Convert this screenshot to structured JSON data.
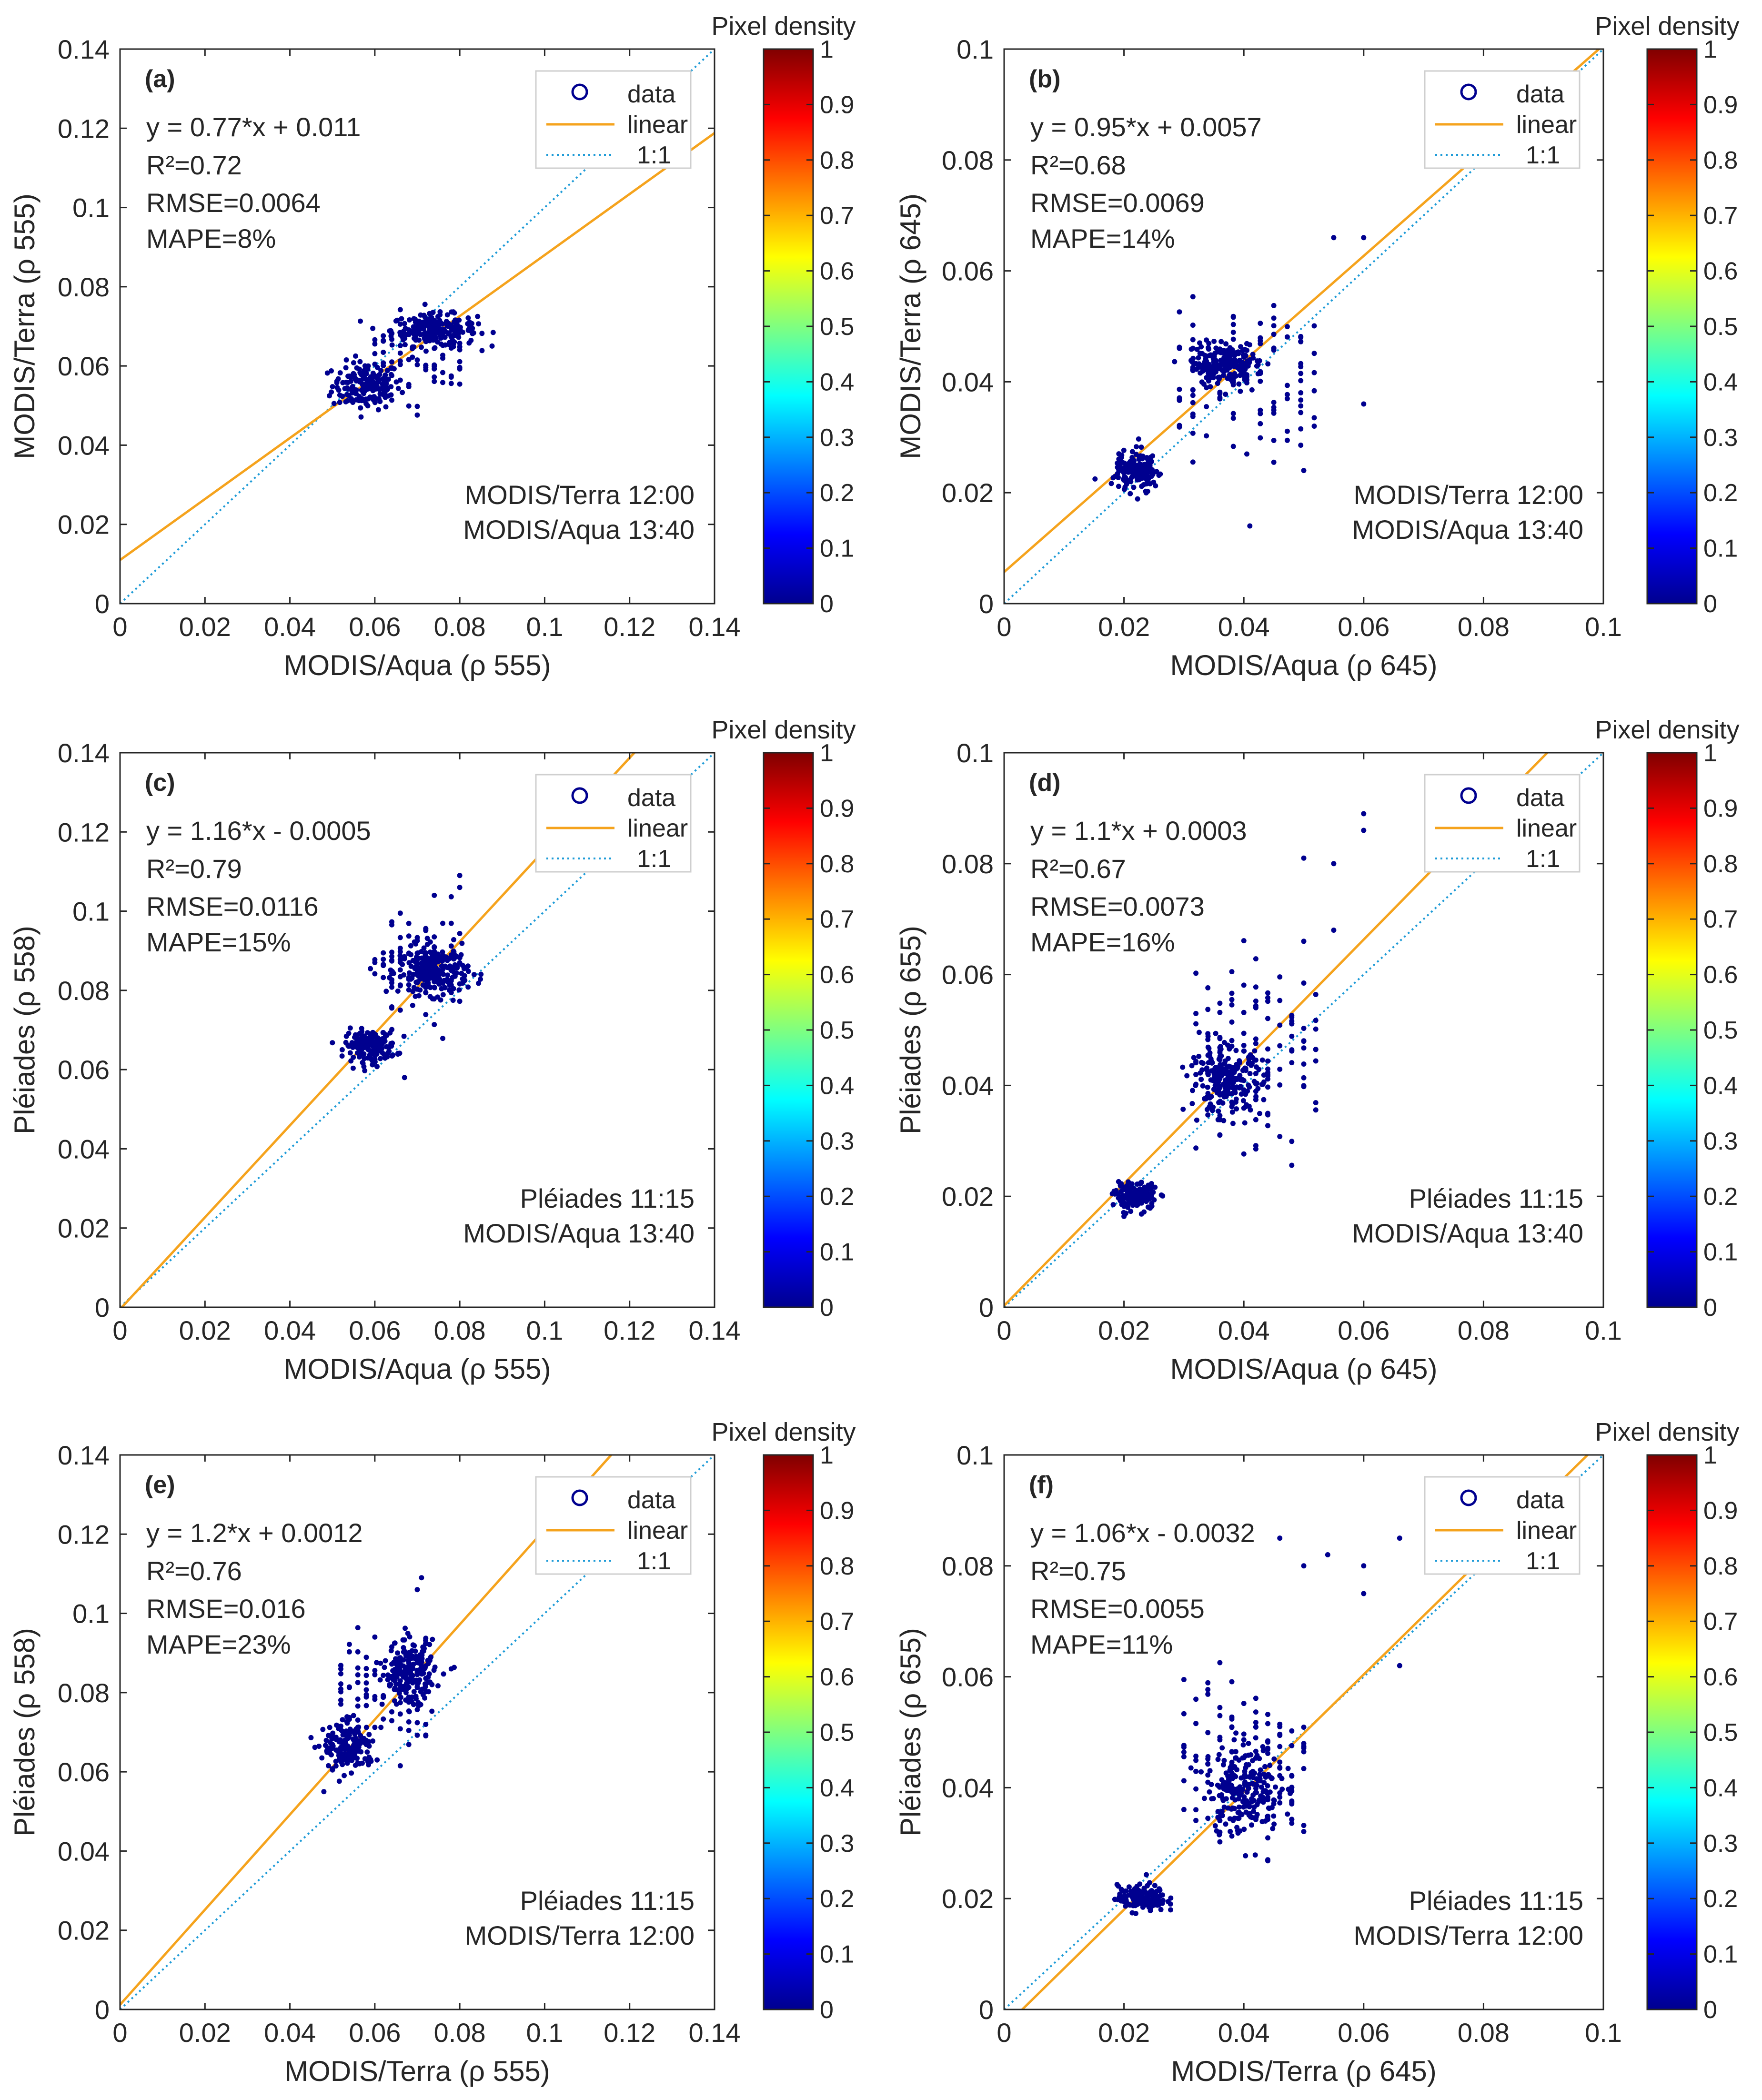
{
  "colors": {
    "data_marker": "#00008f",
    "linear_line": "#f5a31d",
    "one_to_one_line": "#1e9bd7",
    "axes": "#262626",
    "legend_border": "#cfcfcf"
  },
  "colorbar": {
    "title": "Pixel density",
    "ticks": [
      "0",
      "0.1",
      "0.2",
      "0.3",
      "0.4",
      "0.5",
      "0.6",
      "0.7",
      "0.8",
      "0.9",
      "1"
    ],
    "colormap": "jet"
  },
  "legend": {
    "items": [
      {
        "label": "data",
        "symbol": "circle"
      },
      {
        "label": "linear",
        "symbol": "solid-line"
      },
      {
        "label": "1:1",
        "symbol": "dotted-line"
      }
    ],
    "placement": "top-right"
  },
  "chart_data": [
    {
      "type": "scatter",
      "panel_label": "(a)",
      "xlabel": "MODIS/Aqua (ρ 555)",
      "ylabel": "MODIS/Terra (ρ 555)",
      "xlim": [
        0,
        0.14
      ],
      "ylim": [
        0,
        0.14
      ],
      "xticks": [
        "0",
        "0.02",
        "0.04",
        "0.06",
        "0.08",
        "0.1",
        "0.12",
        "0.14"
      ],
      "yticks": [
        "0",
        "0.02",
        "0.04",
        "0.06",
        "0.08",
        "0.1",
        "0.12",
        "0.14"
      ],
      "fit": {
        "slope": 0.77,
        "intercept": 0.011
      },
      "stats": [
        "y = 0.77*x + 0.011",
        "R²=0.72",
        "RMSE=0.0064",
        "MAPE=8%"
      ],
      "note": [
        "MODIS/Terra 12:00",
        "MODIS/Aqua 13:40"
      ],
      "clusters": [
        {
          "cx": 0.058,
          "cy": 0.055,
          "sx": 0.004,
          "sy": 0.003,
          "n": 170,
          "tight": true
        },
        {
          "cx": 0.074,
          "cy": 0.069,
          "sx": 0.005,
          "sy": 0.002,
          "n": 230,
          "tight": true
        },
        {
          "cx": 0.07,
          "cy": 0.062,
          "sx": 0.008,
          "sy": 0.006,
          "n": 70,
          "tight": false
        }
      ],
      "points": []
    },
    {
      "type": "scatter",
      "panel_label": "(b)",
      "xlabel": "MODIS/Aqua (ρ 645)",
      "ylabel": "MODIS/Terra (ρ 645)",
      "xlim": [
        0,
        0.1
      ],
      "ylim": [
        0,
        0.1
      ],
      "xticks": [
        "0",
        "0.02",
        "0.04",
        "0.06",
        "0.08",
        "0.1"
      ],
      "yticks": [
        "0",
        "0.02",
        "0.04",
        "0.06",
        "0.08",
        "0.1"
      ],
      "fit": {
        "slope": 0.95,
        "intercept": 0.0057
      },
      "stats": [
        "y = 0.95*x + 0.0057",
        "R²=0.68",
        "RMSE=0.0069",
        "MAPE=14%"
      ],
      "note": [
        "MODIS/Terra 12:00",
        "MODIS/Aqua 13:40"
      ],
      "clusters": [
        {
          "cx": 0.022,
          "cy": 0.024,
          "sx": 0.0017,
          "sy": 0.0018,
          "n": 160,
          "tight": true
        },
        {
          "cx": 0.037,
          "cy": 0.043,
          "sx": 0.003,
          "sy": 0.0018,
          "n": 190,
          "tight": true
        },
        {
          "cx": 0.04,
          "cy": 0.04,
          "sx": 0.009,
          "sy": 0.009,
          "n": 110,
          "tight": false
        }
      ],
      "points": [
        [
          0.041,
          0.014
        ],
        [
          0.05,
          0.024
        ],
        [
          0.055,
          0.066
        ],
        [
          0.06,
          0.066
        ],
        [
          0.06,
          0.036
        ]
      ]
    },
    {
      "type": "scatter",
      "panel_label": "(c)",
      "xlabel": "MODIS/Aqua (ρ 555)",
      "ylabel": "Pléiades (ρ 558)",
      "xlim": [
        0,
        0.14
      ],
      "ylim": [
        0,
        0.14
      ],
      "xticks": [
        "0",
        "0.02",
        "0.04",
        "0.06",
        "0.08",
        "0.1",
        "0.12",
        "0.14"
      ],
      "yticks": [
        "0",
        "0.02",
        "0.04",
        "0.06",
        "0.08",
        "0.1",
        "0.12",
        "0.14"
      ],
      "fit": {
        "slope": 1.16,
        "intercept": -0.0005
      },
      "stats": [
        "y = 1.16*x - 0.0005",
        "R²=0.79",
        "RMSE=0.0116",
        "MAPE=15%"
      ],
      "note": [
        "Pléiades 11:15",
        "MODIS/Aqua 13:40"
      ],
      "clusters": [
        {
          "cx": 0.059,
          "cy": 0.066,
          "sx": 0.003,
          "sy": 0.002,
          "n": 170,
          "tight": true
        },
        {
          "cx": 0.074,
          "cy": 0.085,
          "sx": 0.004,
          "sy": 0.003,
          "n": 230,
          "tight": true
        },
        {
          "cx": 0.07,
          "cy": 0.085,
          "sx": 0.008,
          "sy": 0.008,
          "n": 90,
          "tight": false
        }
      ],
      "points": [
        [
          0.08,
          0.109
        ],
        [
          0.08,
          0.106
        ],
        [
          0.067,
          0.058
        ]
      ]
    },
    {
      "type": "scatter",
      "panel_label": "(d)",
      "xlabel": "MODIS/Aqua (ρ 645)",
      "ylabel": "Pléiades (ρ 655)",
      "xlim": [
        0,
        0.1
      ],
      "ylim": [
        0,
        0.1
      ],
      "xticks": [
        "0",
        "0.02",
        "0.04",
        "0.06",
        "0.08",
        "0.1"
      ],
      "yticks": [
        "0",
        "0.02",
        "0.04",
        "0.06",
        "0.08",
        "0.1"
      ],
      "fit": {
        "slope": 1.1,
        "intercept": 0.0003
      },
      "stats": [
        "y = 1.1*x + 0.0003",
        "R²=0.67",
        "RMSE=0.0073",
        "MAPE=16%"
      ],
      "note": [
        "Pléiades 11:15",
        "MODIS/Aqua 13:40"
      ],
      "clusters": [
        {
          "cx": 0.022,
          "cy": 0.02,
          "sx": 0.0017,
          "sy": 0.0012,
          "n": 150,
          "tight": true
        },
        {
          "cx": 0.037,
          "cy": 0.041,
          "sx": 0.003,
          "sy": 0.003,
          "n": 220,
          "tight": true
        },
        {
          "cx": 0.042,
          "cy": 0.046,
          "sx": 0.008,
          "sy": 0.01,
          "n": 120,
          "tight": false
        }
      ],
      "points": [
        [
          0.06,
          0.089
        ],
        [
          0.06,
          0.086
        ],
        [
          0.05,
          0.081
        ],
        [
          0.055,
          0.08
        ],
        [
          0.055,
          0.068
        ],
        [
          0.05,
          0.066
        ]
      ]
    },
    {
      "type": "scatter",
      "panel_label": "(e)",
      "xlabel": "MODIS/Terra (ρ 555)",
      "ylabel": "Pléiades (ρ 558)",
      "xlim": [
        0,
        0.14
      ],
      "ylim": [
        0,
        0.14
      ],
      "xticks": [
        "0",
        "0.02",
        "0.04",
        "0.06",
        "0.08",
        "0.1",
        "0.12",
        "0.14"
      ],
      "yticks": [
        "0",
        "0.02",
        "0.04",
        "0.06",
        "0.08",
        "0.1",
        "0.12",
        "0.14"
      ],
      "fit": {
        "slope": 1.2,
        "intercept": 0.0012
      },
      "stats": [
        "y = 1.2*x + 0.0012",
        "R²=0.76",
        "RMSE=0.016",
        "MAPE=23%"
      ],
      "note": [
        "Pléiades 11:15",
        "MODIS/Terra 12:00"
      ],
      "clusters": [
        {
          "cx": 0.054,
          "cy": 0.066,
          "sx": 0.003,
          "sy": 0.003,
          "n": 170,
          "tight": true
        },
        {
          "cx": 0.068,
          "cy": 0.085,
          "sx": 0.003,
          "sy": 0.004,
          "n": 200,
          "tight": true
        },
        {
          "cx": 0.062,
          "cy": 0.08,
          "sx": 0.008,
          "sy": 0.01,
          "n": 90,
          "tight": false
        }
      ],
      "points": [
        [
          0.071,
          0.109
        ],
        [
          0.07,
          0.106
        ],
        [
          0.048,
          0.055
        ],
        [
          0.078,
          0.086
        ]
      ]
    },
    {
      "type": "scatter",
      "panel_label": "(f)",
      "xlabel": "MODIS/Terra (ρ 645)",
      "ylabel": "Pléiades (ρ 655)",
      "xlim": [
        0,
        0.1
      ],
      "ylim": [
        0,
        0.1
      ],
      "xticks": [
        "0",
        "0.02",
        "0.04",
        "0.06",
        "0.08",
        "0.1"
      ],
      "yticks": [
        "0",
        "0.02",
        "0.04",
        "0.06",
        "0.08",
        "0.1"
      ],
      "fit": {
        "slope": 1.06,
        "intercept": -0.0032
      },
      "stats": [
        "y = 1.06*x - 0.0032",
        "R²=0.75",
        "RMSE=0.0055",
        "MAPE=11%"
      ],
      "note": [
        "Pléiades 11:15",
        "MODIS/Terra 12:00"
      ],
      "clusters": [
        {
          "cx": 0.023,
          "cy": 0.02,
          "sx": 0.002,
          "sy": 0.0012,
          "n": 150,
          "tight": true
        },
        {
          "cx": 0.04,
          "cy": 0.04,
          "sx": 0.003,
          "sy": 0.004,
          "n": 220,
          "tight": true
        },
        {
          "cx": 0.04,
          "cy": 0.046,
          "sx": 0.008,
          "sy": 0.01,
          "n": 110,
          "tight": false
        }
      ],
      "points": [
        [
          0.066,
          0.085
        ],
        [
          0.06,
          0.08
        ],
        [
          0.06,
          0.075
        ],
        [
          0.054,
          0.082
        ],
        [
          0.05,
          0.08
        ],
        [
          0.046,
          0.085
        ],
        [
          0.066,
          0.062
        ]
      ]
    }
  ]
}
